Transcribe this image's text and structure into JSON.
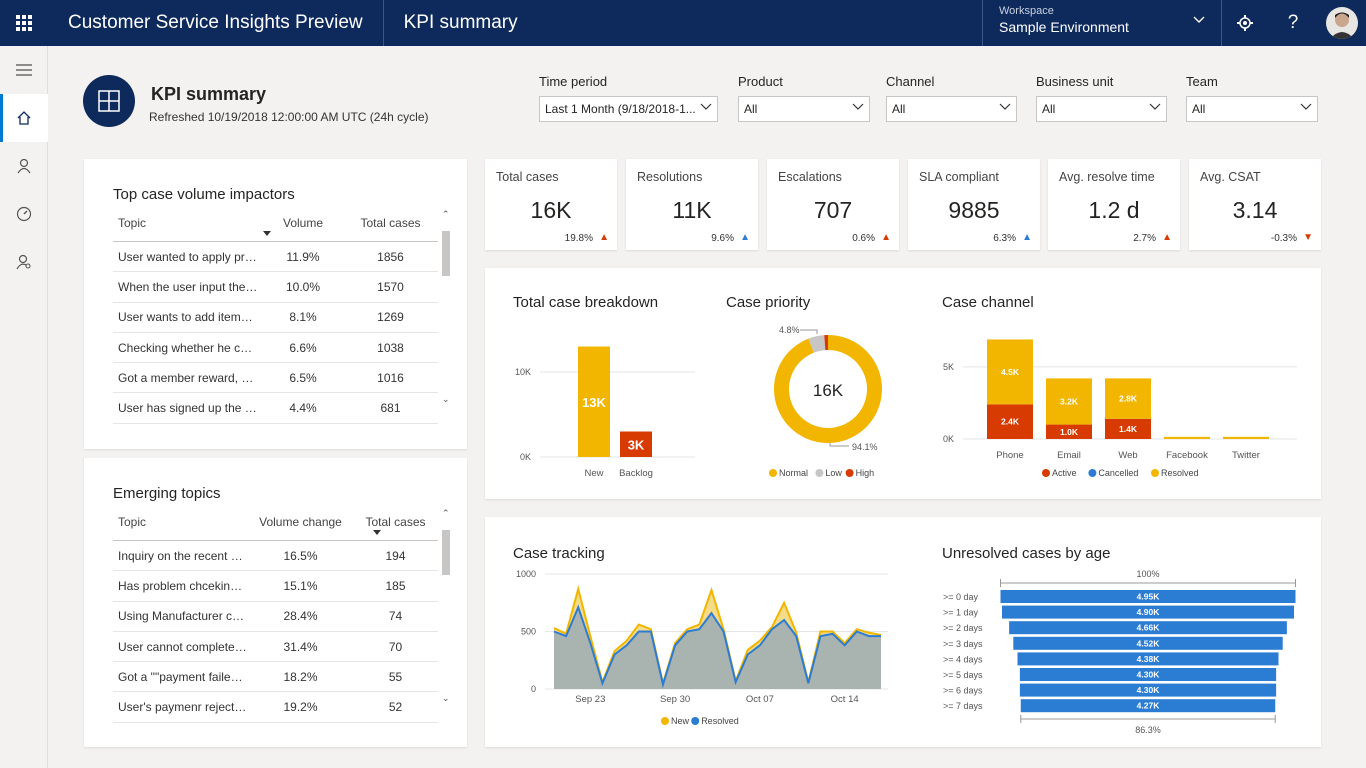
{
  "app": {
    "title": "Customer Service Insights Preview",
    "page": "KPI summary"
  },
  "workspace": {
    "label": "Workspace",
    "value": "Sample Environment"
  },
  "header": {
    "title": "KPI summary",
    "refreshed": "Refreshed 10/19/2018 12:00:00 AM UTC (24h cycle)"
  },
  "filters": [
    {
      "label": "Time period",
      "value": "Last 1 Month (9/18/2018-1..."
    },
    {
      "label": "Product",
      "value": "All"
    },
    {
      "label": "Channel",
      "value": "All"
    },
    {
      "label": "Business unit",
      "value": "All"
    },
    {
      "label": "Team",
      "value": "All"
    }
  ],
  "kpis": [
    {
      "label": "Total cases",
      "value": "16K",
      "change": "19.8%",
      "arrow": "▲",
      "color": "#d83b01"
    },
    {
      "label": "Resolutions",
      "value": "11K",
      "change": "9.6%",
      "arrow": "▲",
      "color": "#2b7cd3"
    },
    {
      "label": "Escalations",
      "value": "707",
      "change": "0.6%",
      "arrow": "▲",
      "color": "#d83b01"
    },
    {
      "label": "SLA compliant",
      "value": "9885",
      "change": "6.3%",
      "arrow": "▲",
      "color": "#2b7cd3"
    },
    {
      "label": "Avg. resolve time",
      "value": "1.2 d",
      "change": "2.7%",
      "arrow": "▲",
      "color": "#d83b01"
    },
    {
      "label": "Avg. CSAT",
      "value": "3.14",
      "change": "-0.3%",
      "arrow": "▼",
      "color": "#d83b01"
    }
  ],
  "impactors": {
    "title": "Top case volume impactors",
    "columns": [
      "Topic",
      "Volume",
      "Total cases"
    ],
    "rows": [
      [
        "User wanted to apply pro...",
        "11.9%",
        "1856"
      ],
      [
        "When the user input the c...",
        "10.0%",
        "1570"
      ],
      [
        "User wants to add items t...",
        "8.1%",
        "1269"
      ],
      [
        "Checking whether he can r...",
        "6.6%",
        "1038"
      ],
      [
        "Got a member reward, an...",
        "6.5%",
        "1016"
      ],
      [
        "User has signed up the ne...",
        "4.4%",
        "681"
      ]
    ]
  },
  "emerging": {
    "title": "Emerging topics",
    "columns": [
      "Topic",
      "Volume change",
      "Total cases"
    ],
    "rows": [
      [
        "Inquiry on the recent deal...",
        "16.5%",
        "194"
      ],
      [
        "Has problem chceking exp...",
        "15.1%",
        "185"
      ],
      [
        "Using Manufacturer coup...",
        "28.4%",
        "74"
      ],
      [
        "User cannot complete a p...",
        "31.4%",
        "70"
      ],
      [
        "Got a \"\"payment failed\"\" ...",
        "18.2%",
        "55"
      ],
      [
        "User's paymenr rejected d...",
        "19.2%",
        "52"
      ]
    ]
  },
  "chart_data": [
    {
      "type": "bar",
      "title": "Total case breakdown",
      "categories": [
        "New",
        "Backlog"
      ],
      "values": [
        13000,
        3000
      ],
      "labels": [
        "13K",
        "3K"
      ],
      "colors": [
        "#f2b600",
        "#d83b01"
      ],
      "yticks": [
        "10K",
        "0K"
      ],
      "yticks_values": [
        10000,
        0
      ],
      "ylim": [
        0,
        14000
      ]
    },
    {
      "type": "pie",
      "title": "Case priority",
      "center_label": "16K",
      "slices": [
        {
          "name": "Normal",
          "value": 94.1,
          "label": "94.1%",
          "color": "#f2b600"
        },
        {
          "name": "Low",
          "value": 4.8,
          "label": "4.8%",
          "color": "#c8c6c4"
        },
        {
          "name": "High",
          "value": 1.1,
          "label": "",
          "color": "#d83b01"
        }
      ]
    },
    {
      "type": "bar",
      "title": "Case channel",
      "stacked": true,
      "categories": [
        "Phone",
        "Email",
        "Web",
        "Facebook",
        "Twitter"
      ],
      "series": [
        {
          "name": "Active",
          "color": "#d83b01",
          "values": [
            2400,
            1000,
            1400,
            0,
            0
          ],
          "labels": [
            "2.4K",
            "1.0K",
            "1.4K",
            "",
            ""
          ]
        },
        {
          "name": "Cancelled",
          "color": "#2b7cd3",
          "values": [
            0,
            0,
            0,
            0,
            0
          ],
          "labels": [
            "",
            "",
            "",
            "",
            ""
          ]
        },
        {
          "name": "Resolved",
          "color": "#f2b600",
          "values": [
            4500,
            3200,
            2800,
            150,
            150
          ],
          "labels": [
            "4.5K",
            "3.2K",
            "2.8K",
            "",
            ""
          ]
        }
      ],
      "yticks": [
        "5K",
        "0K"
      ],
      "yticks_values": [
        5000,
        0
      ],
      "ylim": [
        0,
        7000
      ]
    },
    {
      "type": "area",
      "title": "Case tracking",
      "xticks": [
        "Sep 23",
        "Sep 30",
        "Oct 07",
        "Oct 14"
      ],
      "xtick_index": [
        3,
        10,
        17,
        24
      ],
      "yticks": [
        "1000",
        "500",
        "0"
      ],
      "yticks_values": [
        1000,
        500,
        0
      ],
      "ylim": [
        0,
        1000
      ],
      "series": [
        {
          "name": "New",
          "color": "#f2b600",
          "values": [
            530,
            480,
            870,
            460,
            60,
            330,
            420,
            560,
            520,
            50,
            400,
            520,
            560,
            860,
            520,
            70,
            340,
            420,
            540,
            750,
            490,
            60,
            500,
            500,
            400,
            520,
            490,
            470
          ]
        },
        {
          "name": "Resolved",
          "color": "#2b7cd3",
          "values": [
            500,
            460,
            710,
            400,
            50,
            300,
            380,
            500,
            500,
            40,
            380,
            500,
            520,
            660,
            500,
            60,
            300,
            380,
            520,
            600,
            460,
            50,
            460,
            480,
            380,
            500,
            460,
            460
          ]
        }
      ]
    },
    {
      "type": "bar",
      "title": "Unresolved cases by age",
      "orientation": "horizontal",
      "top_label": "100%",
      "bottom_label": "86.3%",
      "categories": [
        ">= 0 day",
        ">= 1 day",
        ">= 2 days",
        ">= 3 days",
        ">= 4 days",
        ">= 5 days",
        ">= 6 days",
        ">= 7 days"
      ],
      "values": [
        4950,
        4900,
        4660,
        4520,
        4380,
        4300,
        4300,
        4270
      ],
      "labels": [
        "4.95K",
        "4.90K",
        "4.66K",
        "4.52K",
        "4.38K",
        "4.30K",
        "4.30K",
        "4.27K"
      ],
      "color": "#2b7cd3"
    }
  ]
}
